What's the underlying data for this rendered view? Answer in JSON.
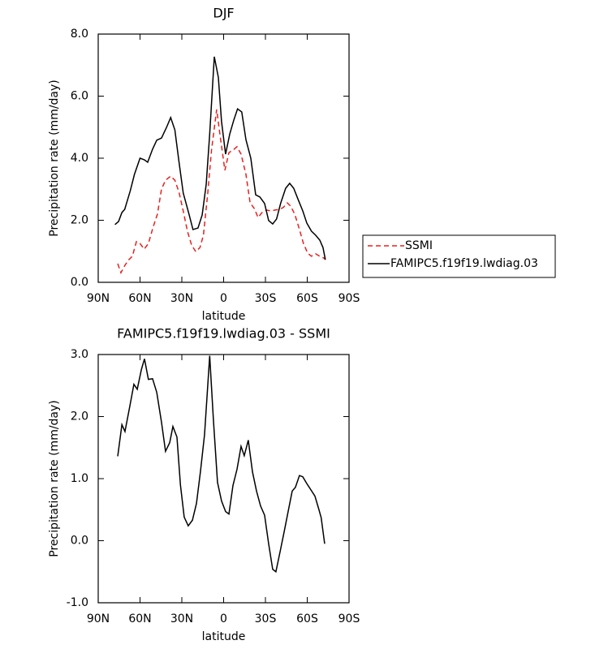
{
  "chart_data": [
    {
      "type": "line",
      "title": "DJF",
      "xlabel": "latitude",
      "ylabel": "Precipitation rate (mm/day)",
      "xlim": [
        90,
        -90
      ],
      "xticks": [
        {
          "value": 90,
          "label": "90N"
        },
        {
          "value": 60,
          "label": "60N"
        },
        {
          "value": 30,
          "label": "30N"
        },
        0,
        {
          "value": -30,
          "label": "30S"
        },
        {
          "value": -60,
          "label": "60S"
        },
        {
          "value": -90,
          "label": "90S"
        }
      ],
      "ylim": [
        0,
        8
      ],
      "yticks": [
        {
          "value": 0,
          "label": "0.0"
        },
        {
          "value": 2,
          "label": "2.0"
        },
        {
          "value": 4,
          "label": "4.0"
        },
        {
          "value": 6,
          "label": "6.0"
        },
        {
          "value": 8,
          "label": "8.0"
        }
      ],
      "legend": "outside-right",
      "series": [
        {
          "name": "SSMI",
          "color": "#e8201e",
          "dashed": true,
          "x": [
            76,
            73.7,
            70.8,
            68,
            65.5,
            62.6,
            60,
            57,
            54,
            50.6,
            47.5,
            44.6,
            41.7,
            38,
            35,
            32,
            29,
            26,
            23,
            20,
            17,
            14.5,
            11.5,
            8.7,
            5,
            2.3,
            -0.9,
            -3.8,
            -6.7,
            -9.6,
            -12.5,
            -16,
            -19,
            -22,
            -24.7,
            -27.6,
            -30.5,
            -34,
            -37,
            -40,
            -42.8,
            -45.7,
            -48,
            -51,
            -53.9,
            -57.3,
            -60.3,
            -63,
            -66,
            -69,
            -72,
            -73
          ],
          "values": [
            0.6,
            0.31,
            0.55,
            0.73,
            0.84,
            1.31,
            1.25,
            1.07,
            1.25,
            1.78,
            2.2,
            3.0,
            3.29,
            3.42,
            3.29,
            2.9,
            2.3,
            1.65,
            1.2,
            0.99,
            1.12,
            1.52,
            2.82,
            4.26,
            5.57,
            4.65,
            3.61,
            4.18,
            4.26,
            4.37,
            4.13,
            3.48,
            2.56,
            2.38,
            2.09,
            2.25,
            2.33,
            2.3,
            2.33,
            2.35,
            2.41,
            2.56,
            2.46,
            2.2,
            1.78,
            1.25,
            0.94,
            0.84,
            0.92,
            0.84,
            0.78,
            0.73
          ]
        },
        {
          "name": "FAMIPC5.f19f19.lwdiag.03",
          "color": "#000000",
          "dashed": false,
          "x": [
            78,
            75.4,
            73,
            71,
            67,
            64,
            60,
            57,
            54.5,
            51,
            48,
            44.6,
            41,
            38,
            35,
            32,
            29,
            25,
            22,
            18.4,
            15.4,
            12.5,
            10,
            6.7,
            3.8,
            1.5,
            -1.4,
            -4.4,
            -7.3,
            -10,
            -13,
            -16,
            -19.5,
            -23,
            -26,
            -29.4,
            -32.3,
            -35.2,
            -38,
            -41,
            -44.5,
            -47.4,
            -50.3,
            -53,
            -56.8,
            -59.7,
            -63,
            -66,
            -69,
            -71.3,
            -73
          ],
          "values": [
            1.86,
            1.96,
            2.25,
            2.35,
            2.95,
            3.48,
            4.0,
            3.95,
            3.87,
            4.29,
            4.58,
            4.65,
            4.99,
            5.31,
            4.91,
            3.87,
            2.88,
            2.22,
            1.7,
            1.75,
            2.17,
            3.16,
            4.78,
            7.27,
            6.61,
            5.18,
            4.13,
            4.78,
            5.23,
            5.59,
            5.49,
            4.6,
            4.0,
            2.82,
            2.75,
            2.54,
            1.99,
            1.88,
            2.04,
            2.56,
            3.03,
            3.19,
            3.03,
            2.72,
            2.3,
            1.91,
            1.65,
            1.52,
            1.36,
            1.12,
            0.73
          ]
        }
      ]
    },
    {
      "type": "line",
      "title": "FAMIPC5.f19f19.lwdiag.03 - SSMI",
      "xlabel": "latitude",
      "ylabel": "Precipitation rate (mm/day)",
      "xlim": [
        90,
        -90
      ],
      "xticks": [
        {
          "value": 90,
          "label": "90N"
        },
        {
          "value": 60,
          "label": "60N"
        },
        {
          "value": 30,
          "label": "30N"
        },
        0,
        {
          "value": -30,
          "label": "30S"
        },
        {
          "value": -60,
          "label": "60S"
        },
        {
          "value": -90,
          "label": "90S"
        }
      ],
      "ylim": [
        -1,
        3
      ],
      "yticks": [
        {
          "value": -1,
          "label": "-1.0"
        },
        {
          "value": 0,
          "label": "0.0"
        },
        {
          "value": 1,
          "label": "1.0"
        },
        {
          "value": 2,
          "label": "2.0"
        },
        {
          "value": 3,
          "label": "3.0"
        }
      ],
      "series": [
        {
          "color": "#000000",
          "dashed": false,
          "x": [
            76,
            73,
            70.8,
            67.3,
            64.4,
            62,
            59,
            56.8,
            54,
            51,
            48,
            44.6,
            41.7,
            38.7,
            36.4,
            33.5,
            31,
            28.3,
            25.4,
            22.4,
            19.5,
            16.6,
            13.7,
            10,
            7.4,
            4.4,
            1.5,
            -1.4,
            -3.8,
            -6.7,
            -9.6,
            -12.5,
            -14.8,
            -17.7,
            -20.7,
            -23.6,
            -26.5,
            -29.4,
            -32.3,
            -35.2,
            -37.5,
            -40.5,
            -43.4,
            -46.3,
            -49.2,
            -51.5,
            -54.4,
            -56.8,
            -59.7,
            -62.6,
            -65.5,
            -68.4,
            -70,
            -72.5
          ],
          "values": [
            1.36,
            1.87,
            1.76,
            2.17,
            2.52,
            2.44,
            2.76,
            2.93,
            2.6,
            2.61,
            2.39,
            1.91,
            1.44,
            1.58,
            1.84,
            1.67,
            0.9,
            0.38,
            0.24,
            0.33,
            0.6,
            1.12,
            1.71,
            2.98,
            1.97,
            0.94,
            0.64,
            0.47,
            0.43,
            0.89,
            1.15,
            1.52,
            1.37,
            1.62,
            1.11,
            0.8,
            0.56,
            0.41,
            -0.05,
            -0.46,
            -0.5,
            -0.18,
            0.14,
            0.47,
            0.8,
            0.86,
            1.05,
            1.03,
            0.92,
            0.82,
            0.72,
            0.5,
            0.37,
            -0.05
          ]
        }
      ]
    }
  ]
}
